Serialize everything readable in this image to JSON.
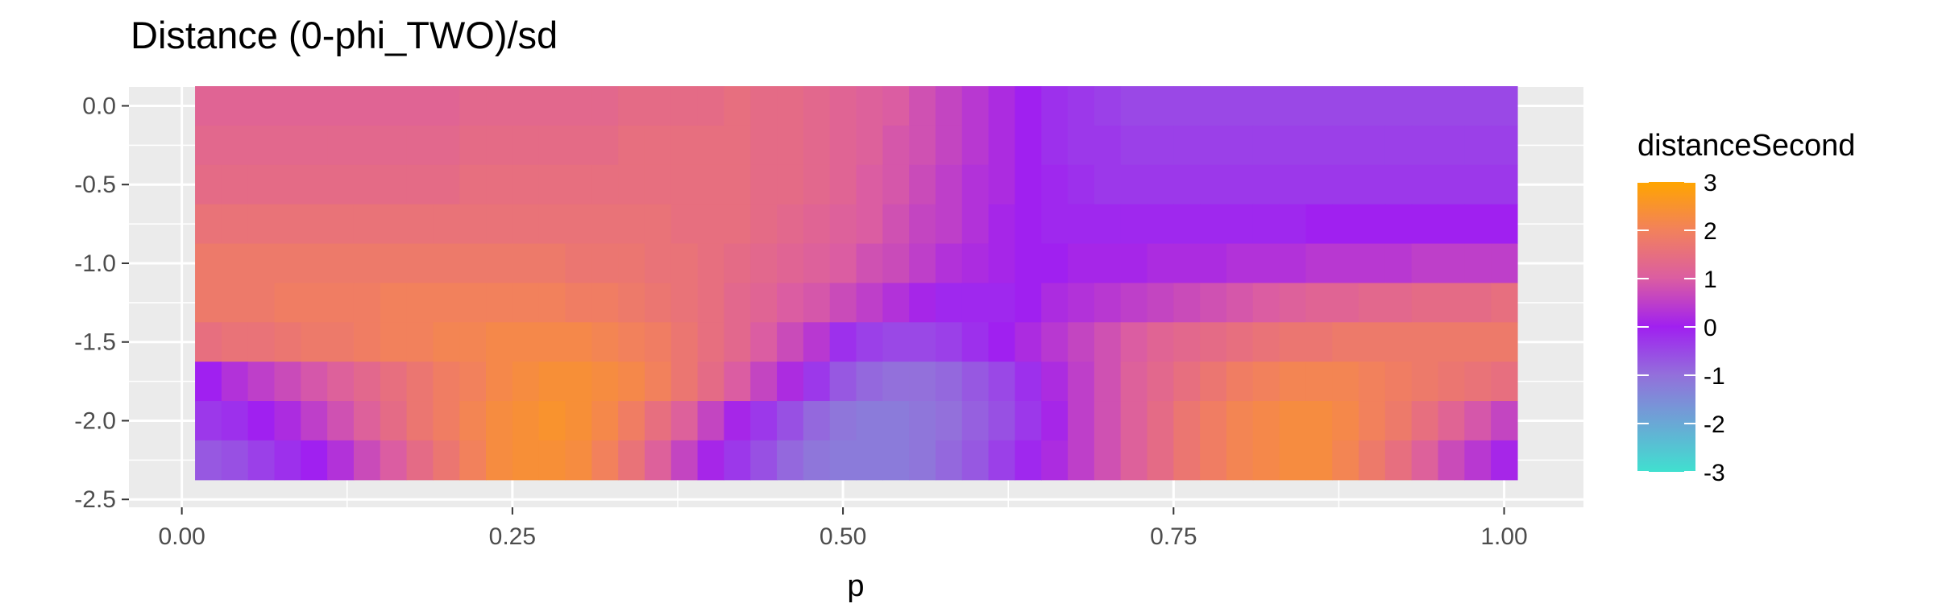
{
  "chart_data": {
    "type": "heatmap",
    "title": "Distance (0-phi_TWO)/sd",
    "xlabel": "p",
    "ylabel": "",
    "x_ticks": [
      "0.00",
      "0.25",
      "0.50",
      "0.75",
      "1.00"
    ],
    "x_tick_values": [
      0.0,
      0.25,
      0.5,
      0.75,
      1.0
    ],
    "y_ticks": [
      "0.0",
      "-0.5",
      "-1.0",
      "-1.5",
      "-2.0",
      "-2.5"
    ],
    "y_tick_values": [
      0.0,
      -0.5,
      -1.0,
      -1.5,
      -2.0,
      -2.5
    ],
    "xlim": [
      -0.04,
      1.06
    ],
    "ylim": [
      -2.55,
      0.12
    ],
    "grid": true,
    "x_centers": [
      0.02,
      0.04,
      0.06,
      0.08,
      0.1,
      0.12,
      0.14,
      0.16,
      0.18,
      0.2,
      0.22,
      0.24,
      0.26,
      0.28,
      0.3,
      0.32,
      0.34,
      0.36,
      0.38,
      0.4,
      0.42,
      0.44,
      0.46,
      0.48,
      0.5,
      0.52,
      0.54,
      0.56,
      0.58,
      0.6,
      0.62,
      0.64,
      0.66,
      0.68,
      0.7,
      0.72,
      0.74,
      0.76,
      0.78,
      0.8,
      0.82,
      0.84,
      0.86,
      0.88,
      0.9,
      0.92,
      0.94,
      0.96,
      0.98,
      1.0
    ],
    "x_step": 0.02,
    "y_centers": [
      0.0,
      -0.25,
      -0.5,
      -0.75,
      -1.0,
      -1.25,
      -1.5,
      -1.75,
      -2.0,
      -2.25
    ],
    "y_step": 0.25,
    "values": [
      [
        1.2,
        1.2,
        1.2,
        1.2,
        1.2,
        1.2,
        1.2,
        1.2,
        1.2,
        1.2,
        1.3,
        1.3,
        1.3,
        1.3,
        1.3,
        1.3,
        1.4,
        1.4,
        1.4,
        1.4,
        1.5,
        1.4,
        1.4,
        1.3,
        1.2,
        1.1,
        1.0,
        0.8,
        0.6,
        0.4,
        0.2,
        0.0,
        -0.2,
        -0.3,
        -0.4,
        -0.5,
        -0.5,
        -0.5,
        -0.5,
        -0.5,
        -0.5,
        -0.5,
        -0.5,
        -0.5,
        -0.5,
        -0.5,
        -0.5,
        -0.5,
        -0.5,
        -0.5
      ],
      [
        1.3,
        1.3,
        1.3,
        1.3,
        1.3,
        1.3,
        1.3,
        1.3,
        1.3,
        1.3,
        1.4,
        1.4,
        1.4,
        1.4,
        1.4,
        1.4,
        1.5,
        1.5,
        1.5,
        1.5,
        1.5,
        1.4,
        1.4,
        1.3,
        1.2,
        1.1,
        0.9,
        0.8,
        0.6,
        0.4,
        0.2,
        0.0,
        -0.2,
        -0.3,
        -0.3,
        -0.4,
        -0.4,
        -0.4,
        -0.4,
        -0.4,
        -0.4,
        -0.4,
        -0.4,
        -0.4,
        -0.4,
        -0.4,
        -0.4,
        -0.4,
        -0.4,
        -0.4
      ],
      [
        1.4,
        1.4,
        1.4,
        1.4,
        1.4,
        1.4,
        1.4,
        1.4,
        1.4,
        1.4,
        1.5,
        1.5,
        1.5,
        1.5,
        1.5,
        1.5,
        1.5,
        1.5,
        1.5,
        1.5,
        1.5,
        1.4,
        1.4,
        1.3,
        1.2,
        1.0,
        0.9,
        0.7,
        0.5,
        0.3,
        0.2,
        0.0,
        -0.1,
        -0.2,
        -0.3,
        -0.3,
        -0.3,
        -0.3,
        -0.3,
        -0.3,
        -0.3,
        -0.3,
        -0.3,
        -0.3,
        -0.3,
        -0.3,
        -0.3,
        -0.3,
        -0.3,
        -0.3
      ],
      [
        1.6,
        1.6,
        1.6,
        1.6,
        1.6,
        1.6,
        1.6,
        1.6,
        1.6,
        1.6,
        1.6,
        1.6,
        1.6,
        1.6,
        1.6,
        1.6,
        1.6,
        1.6,
        1.5,
        1.5,
        1.5,
        1.4,
        1.3,
        1.2,
        1.1,
        1.0,
        0.8,
        0.6,
        0.5,
        0.3,
        0.1,
        0.0,
        -0.1,
        -0.1,
        -0.1,
        -0.1,
        -0.1,
        -0.1,
        -0.1,
        -0.1,
        -0.1,
        -0.1,
        0.0,
        0.0,
        0.0,
        0.0,
        0.0,
        0.0,
        0.0,
        0.0
      ],
      [
        1.8,
        1.8,
        1.8,
        1.8,
        1.8,
        1.8,
        1.8,
        1.8,
        1.8,
        1.8,
        1.8,
        1.8,
        1.8,
        1.8,
        1.7,
        1.7,
        1.7,
        1.6,
        1.6,
        1.5,
        1.4,
        1.3,
        1.2,
        1.1,
        1.0,
        0.8,
        0.7,
        0.5,
        0.3,
        0.2,
        0.1,
        0.0,
        0.0,
        0.1,
        0.1,
        0.1,
        0.2,
        0.2,
        0.2,
        0.3,
        0.3,
        0.3,
        0.4,
        0.4,
        0.4,
        0.4,
        0.5,
        0.5,
        0.5,
        0.5
      ],
      [
        1.8,
        1.8,
        1.8,
        1.9,
        1.9,
        1.9,
        1.9,
        2.0,
        2.0,
        2.0,
        2.0,
        2.0,
        2.0,
        2.0,
        1.9,
        1.9,
        1.8,
        1.7,
        1.6,
        1.5,
        1.3,
        1.2,
        1.0,
        0.9,
        0.7,
        0.5,
        0.3,
        0.1,
        -0.1,
        -0.1,
        -0.1,
        0.0,
        0.2,
        0.3,
        0.4,
        0.5,
        0.6,
        0.7,
        0.8,
        0.9,
        1.0,
        1.1,
        1.2,
        1.2,
        1.3,
        1.3,
        1.4,
        1.4,
        1.4,
        1.5
      ],
      [
        1.5,
        1.6,
        1.6,
        1.7,
        1.8,
        1.8,
        1.9,
        2.0,
        2.0,
        2.1,
        2.1,
        2.2,
        2.2,
        2.2,
        2.2,
        2.1,
        2.0,
        1.9,
        1.7,
        1.5,
        1.3,
        1.0,
        0.7,
        0.4,
        -0.2,
        -0.4,
        -0.5,
        -0.5,
        -0.4,
        -0.2,
        0.0,
        0.2,
        0.4,
        0.6,
        0.8,
        1.0,
        1.2,
        1.3,
        1.4,
        1.5,
        1.6,
        1.7,
        1.7,
        1.8,
        1.8,
        1.8,
        1.8,
        1.8,
        1.8,
        1.8
      ],
      [
        0.0,
        0.3,
        0.5,
        0.7,
        0.9,
        1.1,
        1.3,
        1.5,
        1.7,
        1.9,
        2.0,
        2.2,
        2.3,
        2.4,
        2.4,
        2.3,
        2.2,
        2.0,
        1.7,
        1.4,
        1.0,
        0.6,
        0.2,
        -0.3,
        -0.7,
        -0.9,
        -1.0,
        -1.0,
        -0.9,
        -0.7,
        -0.5,
        -0.2,
        0.2,
        0.5,
        0.8,
        1.1,
        1.3,
        1.5,
        1.7,
        1.9,
        2.0,
        2.1,
        2.1,
        2.1,
        2.0,
        1.9,
        1.8,
        1.7,
        1.6,
        1.5
      ],
      [
        -0.3,
        -0.2,
        0.0,
        0.2,
        0.5,
        0.8,
        1.1,
        1.4,
        1.7,
        1.9,
        2.1,
        2.3,
        2.4,
        2.5,
        2.4,
        2.2,
        1.9,
        1.5,
        1.1,
        0.6,
        0.1,
        -0.3,
        -0.6,
        -0.9,
        -1.1,
        -1.2,
        -1.2,
        -1.1,
        -1.0,
        -0.8,
        -0.6,
        -0.3,
        0.1,
        0.5,
        0.8,
        1.1,
        1.4,
        1.7,
        1.9,
        2.1,
        2.2,
        2.3,
        2.3,
        2.2,
        2.0,
        1.8,
        1.5,
        1.2,
        0.9,
        0.6
      ],
      [
        -0.7,
        -0.6,
        -0.4,
        -0.2,
        0.0,
        0.3,
        0.7,
        1.0,
        1.4,
        1.7,
        2.0,
        2.3,
        2.4,
        2.4,
        2.3,
        2.0,
        1.6,
        1.1,
        0.6,
        0.1,
        -0.3,
        -0.6,
        -0.9,
        -1.1,
        -1.2,
        -1.2,
        -1.2,
        -1.1,
        -0.9,
        -0.7,
        -0.4,
        -0.1,
        0.2,
        0.5,
        0.8,
        1.1,
        1.4,
        1.7,
        1.9,
        2.1,
        2.2,
        2.3,
        2.3,
        2.1,
        1.8,
        1.5,
        1.1,
        0.7,
        0.4,
        0.1
      ]
    ],
    "legend": {
      "title": "distanceSecond",
      "labels": [
        "3",
        "2",
        "1",
        "0",
        "-1",
        "-2",
        "-3"
      ],
      "values": [
        3,
        2,
        1,
        0,
        -1,
        -2,
        -3
      ],
      "range": [
        -3,
        3
      ],
      "color_stops": [
        {
          "value": -3,
          "color": "#40E0D0"
        },
        {
          "value": -1,
          "color": "#9370DB"
        },
        {
          "value": 0,
          "color": "#A020F0"
        },
        {
          "value": 1,
          "color": "#DB5DA2"
        },
        {
          "value": 2,
          "color": "#F2815C"
        },
        {
          "value": 3,
          "color": "#FFA500"
        }
      ]
    },
    "colors": {
      "panel_background": "#EBEBEB",
      "grid_major": "#FFFFFF",
      "tick_text": "#4D4D4D"
    }
  }
}
